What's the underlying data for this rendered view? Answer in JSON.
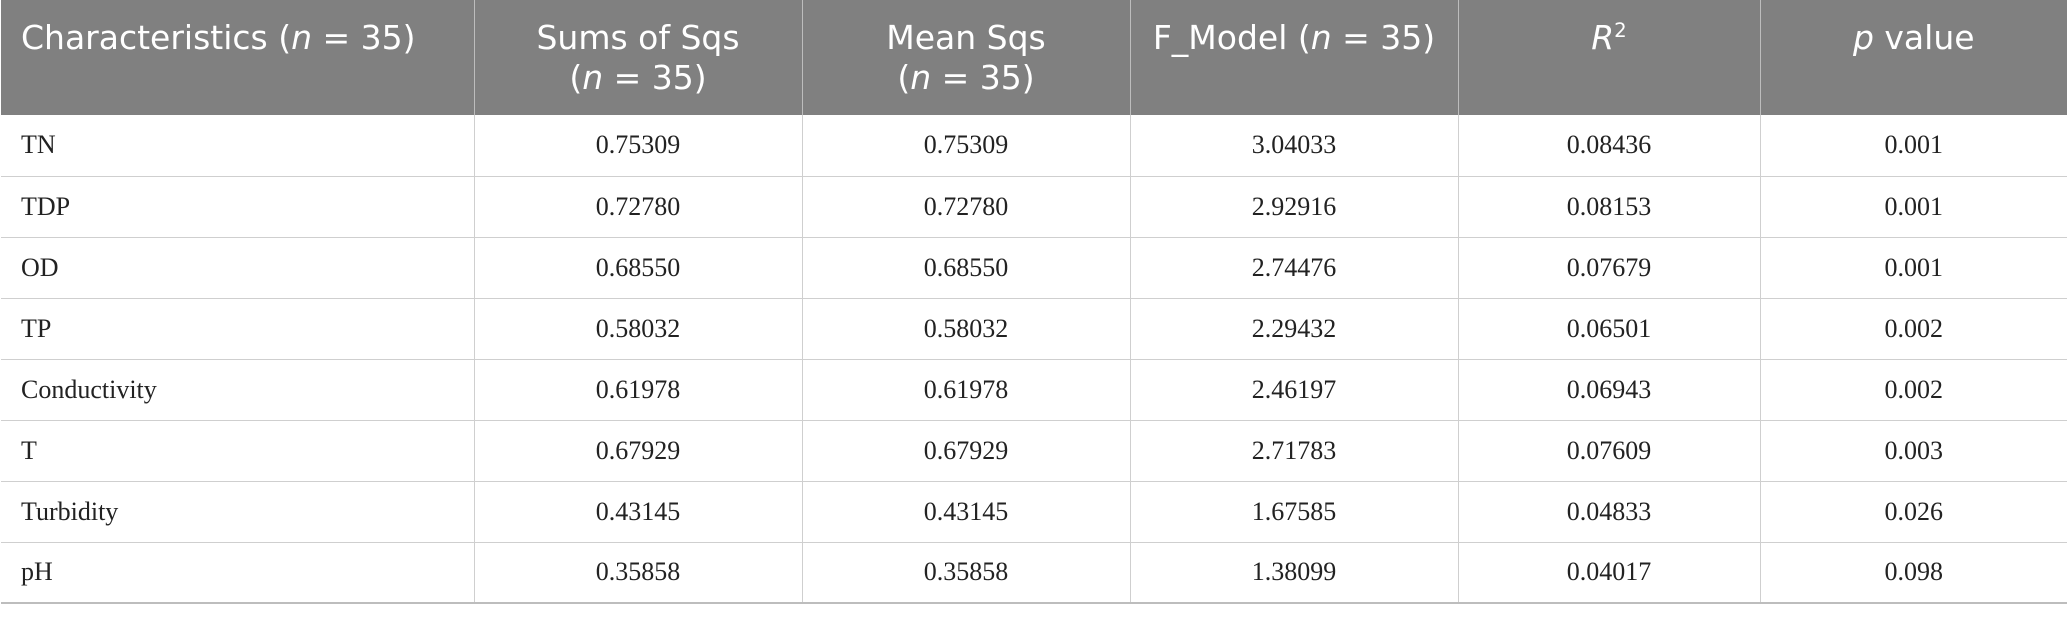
{
  "table": {
    "headers": {
      "characteristics": {
        "prefix": "Characteristics (",
        "n": "n",
        "suffix": " = 35)"
      },
      "sums_of_sqs": {
        "line1": "Sums of Sqs",
        "prefix": "(",
        "n": "n",
        "suffix": " = 35)"
      },
      "mean_sqs": {
        "line1": "Mean Sqs",
        "prefix": "(",
        "n": "n",
        "suffix": " = 35)"
      },
      "f_model": {
        "prefix": "F_Model (",
        "n": "n",
        "suffix": " = 35)"
      },
      "r2": {
        "base": "R",
        "sup": "2"
      },
      "p_value": {
        "p": "p",
        "suffix": " value"
      }
    },
    "rows": [
      {
        "characteristic": "TN",
        "sums_of_sqs": "0.75309",
        "mean_sqs": "0.75309",
        "f_model": "3.04033",
        "r2": "0.08436",
        "p_value": "0.001"
      },
      {
        "characteristic": "TDP",
        "sums_of_sqs": "0.72780",
        "mean_sqs": "0.72780",
        "f_model": "2.92916",
        "r2": "0.08153",
        "p_value": "0.001"
      },
      {
        "characteristic": "OD",
        "sums_of_sqs": "0.68550",
        "mean_sqs": "0.68550",
        "f_model": "2.74476",
        "r2": "0.07679",
        "p_value": "0.001"
      },
      {
        "characteristic": "TP",
        "sums_of_sqs": "0.58032",
        "mean_sqs": "0.58032",
        "f_model": "2.29432",
        "r2": "0.06501",
        "p_value": "0.002"
      },
      {
        "characteristic": "Conductivity",
        "sums_of_sqs": "0.61978",
        "mean_sqs": "0.61978",
        "f_model": "2.46197",
        "r2": "0.06943",
        "p_value": "0.002"
      },
      {
        "characteristic": "T",
        "sums_of_sqs": "0.67929",
        "mean_sqs": "0.67929",
        "f_model": "2.71783",
        "r2": "0.07609",
        "p_value": "0.003"
      },
      {
        "characteristic": "Turbidity",
        "sums_of_sqs": "0.43145",
        "mean_sqs": "0.43145",
        "f_model": "1.67585",
        "r2": "0.04833",
        "p_value": "0.026"
      },
      {
        "characteristic": "pH",
        "sums_of_sqs": "0.35858",
        "mean_sqs": "0.35858",
        "f_model": "1.38099",
        "r2": "0.04017",
        "p_value": "0.098"
      }
    ]
  }
}
